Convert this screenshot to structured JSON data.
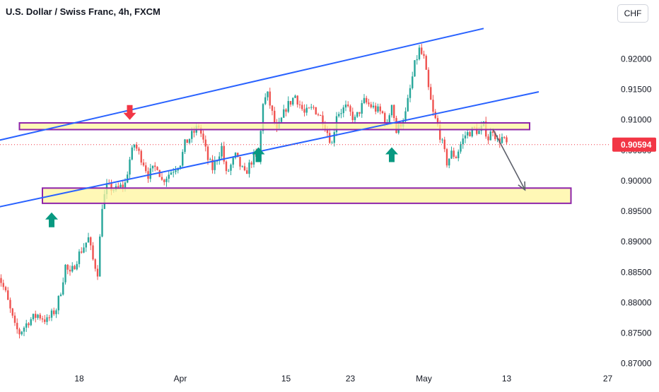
{
  "header": {
    "title": "U.S. Dollar / Swiss Franc, 4h, FXCM",
    "currency": "CHF"
  },
  "chart_data": {
    "type": "candlestick",
    "symbol": "U.S. Dollar / Swiss Franc",
    "timeframe": "4h",
    "source": "FXCM",
    "ylim": [
      0.8695,
      0.9255
    ],
    "y_ticks": [
      "0.92000",
      "0.91500",
      "0.91000",
      "0.90500",
      "0.90000",
      "0.89500",
      "0.89000",
      "0.88500",
      "0.88000",
      "0.87500",
      "0.87000"
    ],
    "x_ticks": [
      "18",
      "Apr",
      "15",
      "23",
      "May",
      "13",
      "27"
    ],
    "x_tick_index": [
      18,
      40,
      63,
      77,
      93,
      111,
      133
    ],
    "last_price": "0.90594",
    "colors": {
      "up": "#26a69a",
      "down": "#ef5350",
      "trendline": "#2962ff",
      "zone_fill": "#fff59d",
      "zone_border": "#8e24aa",
      "arrow_up": "#089981",
      "arrow_down": "#f23645",
      "projection": "#5d606b",
      "last_price": "#f23645"
    },
    "close_path": [
      [
        0,
        0.8855
      ],
      [
        2,
        0.8815
      ],
      [
        4,
        0.876
      ],
      [
        5,
        0.875
      ],
      [
        7,
        0.877
      ],
      [
        9,
        0.878
      ],
      [
        11,
        0.877
      ],
      [
        13,
        0.879
      ],
      [
        14,
        0.882
      ],
      [
        15,
        0.886
      ],
      [
        16,
        0.8845
      ],
      [
        18,
        0.888
      ],
      [
        20,
        0.8905
      ],
      [
        21,
        0.887
      ],
      [
        22,
        0.885
      ],
      [
        23,
        0.896
      ],
      [
        24,
        0.899
      ],
      [
        26,
        0.8985
      ],
      [
        28,
        0.8995
      ],
      [
        29,
        0.9035
      ],
      [
        30,
        0.906
      ],
      [
        32,
        0.903
      ],
      [
        33,
        0.901
      ],
      [
        35,
        0.9025
      ],
      [
        36,
        0.9
      ],
      [
        38,
        0.9015
      ],
      [
        40,
        0.903
      ],
      [
        41,
        0.906
      ],
      [
        43,
        0.908
      ],
      [
        44,
        0.909
      ],
      [
        45,
        0.9065
      ],
      [
        46,
        0.9035
      ],
      [
        47,
        0.902
      ],
      [
        49,
        0.9055
      ],
      [
        50,
        0.901
      ],
      [
        52,
        0.904
      ],
      [
        54,
        0.901
      ],
      [
        56,
        0.904
      ],
      [
        57,
        0.903
      ],
      [
        58,
        0.913
      ],
      [
        59,
        0.914
      ],
      [
        60,
        0.911
      ],
      [
        61,
        0.908
      ],
      [
        63,
        0.912
      ],
      [
        65,
        0.914
      ],
      [
        67,
        0.911
      ],
      [
        69,
        0.912
      ],
      [
        71,
        0.91
      ],
      [
        72,
        0.908
      ],
      [
        73,
        0.906
      ],
      [
        74,
        0.911
      ],
      [
        76,
        0.912
      ],
      [
        78,
        0.91
      ],
      [
        80,
        0.913
      ],
      [
        82,
        0.912
      ],
      [
        84,
        0.911
      ],
      [
        85,
        0.909
      ],
      [
        86,
        0.913
      ],
      [
        87,
        0.908
      ],
      [
        89,
        0.911
      ],
      [
        90,
        0.915
      ],
      [
        91,
        0.919
      ],
      [
        92,
        0.9215
      ],
      [
        93,
        0.92
      ],
      [
        94,
        0.915
      ],
      [
        95,
        0.911
      ],
      [
        96,
        0.909
      ],
      [
        97,
        0.906
      ],
      [
        98,
        0.903
      ],
      [
        99,
        0.9045
      ],
      [
        100,
        0.904
      ],
      [
        101,
        0.906
      ],
      [
        102,
        0.9075
      ],
      [
        104,
        0.9085
      ],
      [
        105,
        0.908
      ],
      [
        106,
        0.909
      ],
      [
        107,
        0.907
      ],
      [
        108,
        0.9085
      ],
      [
        109,
        0.9065
      ],
      [
        110,
        0.907
      ],
      [
        111,
        0.906
      ]
    ],
    "annotations": {
      "upper_channel": [
        [
          -2,
          0.9062
        ],
        [
          106,
          0.925
        ]
      ],
      "lower_channel": [
        [
          -2,
          0.8953
        ],
        [
          118,
          0.9146
        ]
      ],
      "resistance_zone": {
        "x0": 5,
        "x1": 116,
        "y0": 0.9084,
        "y1": 0.9095
      },
      "support_zone": {
        "x0": 10,
        "x1": 125,
        "y0": 0.8963,
        "y1": 0.8988
      },
      "arrow_up_points": [
        [
          12,
          0.8948
        ],
        [
          57,
          0.9055
        ],
        [
          86,
          0.9055
        ]
      ],
      "arrow_down_points": [
        [
          29,
          0.91
        ]
      ],
      "projection_arrow": [
        [
          108,
          0.9085
        ],
        [
          115,
          0.8985
        ]
      ]
    }
  }
}
